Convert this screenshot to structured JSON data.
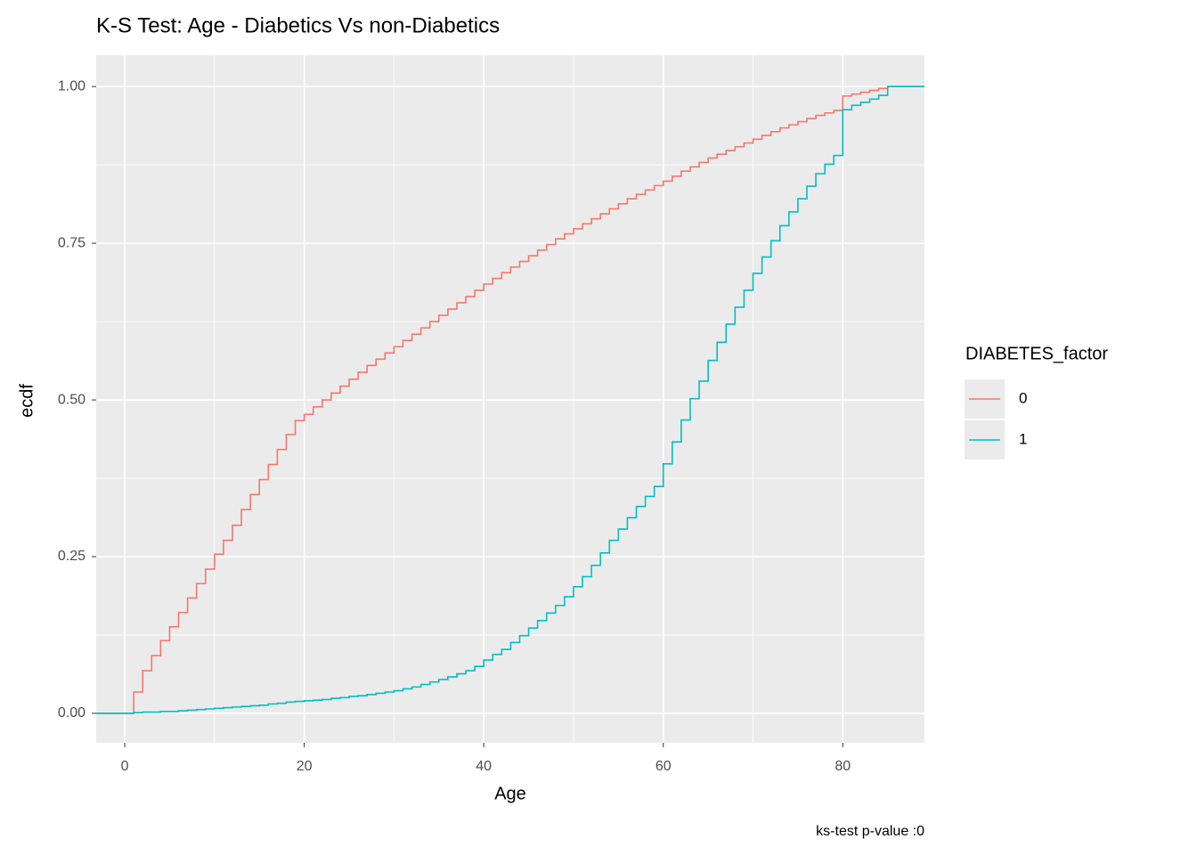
{
  "chart_data": {
    "type": "ecdf-step",
    "title": "K-S Test: Age - Diabetics Vs non-Diabetics",
    "x_label": "Age",
    "y_label": "ecdf",
    "caption": "ks-test p-value :0",
    "legend_title": "DIABETES_factor",
    "legend_position": "right",
    "grid": true,
    "x": [
      0,
      1,
      2,
      3,
      4,
      5,
      6,
      7,
      8,
      9,
      10,
      11,
      12,
      13,
      14,
      15,
      16,
      17,
      18,
      19,
      20,
      21,
      22,
      23,
      24,
      25,
      26,
      27,
      28,
      29,
      30,
      31,
      32,
      33,
      34,
      35,
      36,
      37,
      38,
      39,
      40,
      41,
      42,
      43,
      44,
      45,
      46,
      47,
      48,
      49,
      50,
      51,
      52,
      53,
      54,
      55,
      56,
      57,
      58,
      59,
      60,
      61,
      62,
      63,
      64,
      65,
      66,
      67,
      68,
      69,
      70,
      71,
      72,
      73,
      74,
      75,
      76,
      77,
      78,
      79,
      80,
      81,
      82,
      83,
      84,
      85
    ],
    "series": [
      {
        "name": "0",
        "color": "#F8766D",
        "values": [
          0,
          0.034,
          0.068,
          0.092,
          0.116,
          0.138,
          0.161,
          0.184,
          0.207,
          0.23,
          0.254,
          0.276,
          0.3,
          0.325,
          0.349,
          0.373,
          0.397,
          0.421,
          0.445,
          0.467,
          0.477,
          0.489,
          0.5,
          0.511,
          0.522,
          0.533,
          0.544,
          0.555,
          0.565,
          0.575,
          0.585,
          0.595,
          0.605,
          0.615,
          0.625,
          0.635,
          0.645,
          0.655,
          0.665,
          0.675,
          0.685,
          0.694,
          0.703,
          0.712,
          0.721,
          0.73,
          0.739,
          0.748,
          0.757,
          0.765,
          0.773,
          0.781,
          0.789,
          0.797,
          0.805,
          0.813,
          0.821,
          0.828,
          0.835,
          0.842,
          0.849,
          0.857,
          0.865,
          0.872,
          0.879,
          0.886,
          0.892,
          0.898,
          0.904,
          0.91,
          0.916,
          0.922,
          0.928,
          0.934,
          0.939,
          0.944,
          0.949,
          0.954,
          0.958,
          0.962,
          0.985,
          0.988,
          0.991,
          0.994,
          0.997,
          1.0
        ]
      },
      {
        "name": "1",
        "color": "#00BFC4",
        "values": [
          0,
          0.001,
          0.002,
          0.002,
          0.003,
          0.003,
          0.004,
          0.005,
          0.006,
          0.007,
          0.008,
          0.009,
          0.01,
          0.011,
          0.012,
          0.013,
          0.015,
          0.016,
          0.018,
          0.019,
          0.02,
          0.021,
          0.022,
          0.024,
          0.025,
          0.027,
          0.028,
          0.03,
          0.032,
          0.034,
          0.036,
          0.039,
          0.042,
          0.046,
          0.05,
          0.054,
          0.058,
          0.063,
          0.068,
          0.075,
          0.085,
          0.094,
          0.102,
          0.113,
          0.124,
          0.136,
          0.148,
          0.16,
          0.172,
          0.186,
          0.202,
          0.218,
          0.236,
          0.256,
          0.276,
          0.294,
          0.312,
          0.33,
          0.346,
          0.362,
          0.398,
          0.433,
          0.468,
          0.502,
          0.53,
          0.563,
          0.592,
          0.621,
          0.648,
          0.675,
          0.702,
          0.728,
          0.754,
          0.778,
          0.8,
          0.821,
          0.841,
          0.861,
          0.876,
          0.89,
          0.963,
          0.97,
          0.975,
          0.98,
          0.986,
          1.0
        ]
      }
    ],
    "xlim": [
      -3.18,
      89.1
    ],
    "xticks": [
      0,
      20,
      40,
      60,
      80
    ],
    "ylim": [
      -0.047,
      1.05
    ],
    "yticks": [
      {
        "value": 0,
        "label": "0.00"
      },
      {
        "value": 0.25,
        "label": "0.25"
      },
      {
        "value": 0.5,
        "label": "0.50"
      },
      {
        "value": 0.75,
        "label": "0.75"
      },
      {
        "value": 1,
        "label": "1.00"
      }
    ]
  }
}
